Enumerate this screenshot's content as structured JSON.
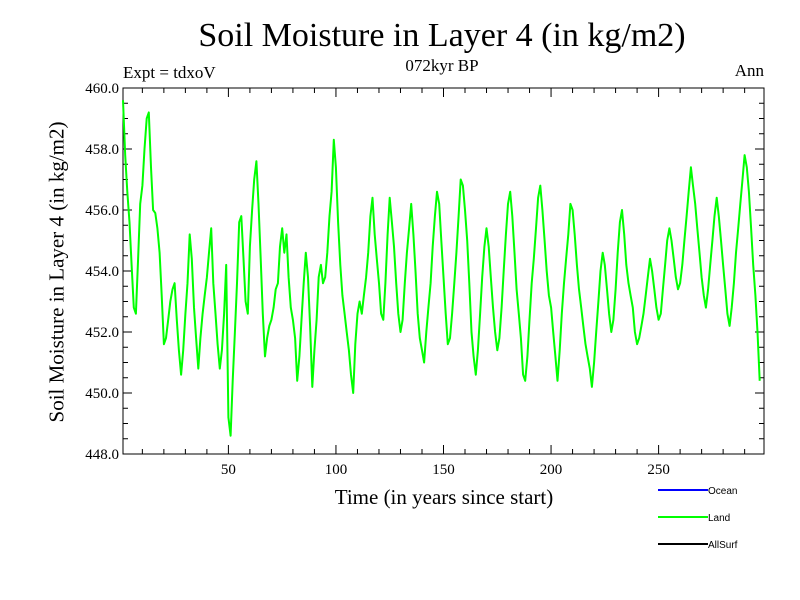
{
  "chart_data": {
    "type": "line",
    "title": "Soil Moisture in Layer 4 (in kg/m2)",
    "subtitle": "072kyr BP",
    "expt_label": "Expt = tdxoV",
    "season_label": "Ann",
    "xlabel": "Time (in years since start)",
    "ylabel": "Soil Moisture in Layer 4 (in kg/m2)",
    "xlim": [
      1,
      299
    ],
    "ylim": [
      448.0,
      460.0
    ],
    "x_ticks": [
      50,
      100,
      150,
      200,
      250
    ],
    "y_ticks": [
      "448.0",
      "450.0",
      "452.0",
      "454.0",
      "456.0",
      "458.0",
      "460.0"
    ],
    "grid": false,
    "legend_position": "bottom-right, below plot",
    "legend": [
      {
        "name": "Ocean",
        "color": "#0000ff"
      },
      {
        "name": "Land",
        "color": "#00ff00"
      },
      {
        "name": "AllSurf",
        "color": "#000000"
      }
    ],
    "series": [
      {
        "name": "Land",
        "color": "#00ff00",
        "x_start": 1,
        "x_step": 1,
        "values": [
          459.6,
          457.8,
          456.6,
          455.6,
          454.2,
          452.8,
          452.6,
          454.4,
          456.2,
          456.8,
          458.0,
          459.0,
          459.2,
          457.4,
          456.0,
          455.9,
          455.4,
          454.6,
          453.2,
          451.6,
          451.8,
          452.4,
          453.0,
          453.4,
          453.6,
          452.4,
          451.4,
          450.6,
          451.4,
          452.6,
          453.6,
          455.2,
          454.4,
          452.8,
          451.8,
          450.8,
          451.8,
          452.6,
          453.2,
          453.8,
          454.6,
          455.4,
          453.6,
          452.6,
          451.6,
          450.8,
          451.4,
          452.6,
          454.2,
          449.2,
          448.6,
          450.4,
          452.0,
          453.6,
          455.6,
          455.8,
          454.4,
          453.0,
          452.6,
          454.8,
          456.0,
          457.0,
          457.6,
          456.2,
          454.4,
          452.6,
          451.2,
          451.8,
          452.2,
          452.4,
          452.8,
          453.4,
          453.6,
          454.8,
          455.4,
          454.6,
          455.2,
          453.8,
          452.8,
          452.4,
          451.8,
          450.4,
          451.2,
          452.4,
          453.6,
          454.6,
          453.8,
          452.2,
          450.2,
          451.4,
          452.4,
          453.8,
          454.2,
          453.6,
          453.8,
          454.6,
          455.8,
          456.6,
          458.3,
          457.4,
          455.6,
          454.2,
          453.2,
          452.6,
          452.0,
          451.4,
          450.6,
          450.0,
          451.6,
          452.6,
          453.0,
          452.6,
          453.2,
          453.8,
          454.6,
          455.8,
          456.4,
          455.2,
          454.4,
          453.6,
          452.6,
          452.4,
          453.6,
          455.2,
          456.4,
          455.6,
          454.8,
          453.6,
          452.6,
          452.0,
          452.4,
          453.6,
          454.6,
          455.4,
          456.2,
          455.2,
          454.0,
          452.6,
          451.8,
          451.4,
          451.0,
          452.0,
          452.8,
          453.6,
          454.8,
          455.8,
          456.6,
          456.2,
          455.0,
          453.8,
          452.6,
          451.6,
          451.8,
          452.6,
          453.6,
          454.6,
          455.8,
          457.0,
          456.8,
          456.0,
          455.0,
          453.6,
          452.0,
          451.2,
          450.6,
          451.4,
          452.6,
          453.8,
          454.8,
          455.4,
          454.8,
          453.8,
          452.8,
          452.0,
          451.4,
          451.8,
          452.8,
          454.0,
          455.2,
          456.2,
          456.6,
          455.8,
          454.6,
          453.4,
          452.6,
          451.8,
          450.6,
          450.4,
          451.2,
          452.4,
          453.6,
          454.4,
          455.4,
          456.4,
          456.8,
          456.0,
          455.0,
          454.0,
          453.2,
          452.8,
          452.0,
          451.2,
          450.4,
          451.4,
          452.6,
          453.6,
          454.4,
          455.2,
          456.2,
          456.0,
          455.2,
          454.2,
          453.4,
          452.8,
          452.2,
          451.6,
          451.2,
          450.8,
          450.2,
          451.0,
          452.0,
          453.0,
          454.0,
          454.6,
          454.2,
          453.4,
          452.6,
          452.0,
          452.4,
          453.4,
          454.6,
          455.6,
          456.0,
          455.2,
          454.2,
          453.6,
          453.2,
          452.8,
          452.0,
          451.6,
          451.8,
          452.2,
          452.6,
          453.2,
          453.8,
          454.4,
          454.0,
          453.4,
          452.8,
          452.4,
          452.6,
          453.4,
          454.2,
          455.0,
          455.4,
          455.0,
          454.4,
          453.8,
          453.4,
          453.6,
          454.2,
          455.0,
          455.8,
          456.6,
          457.4,
          456.8,
          456.2,
          455.4,
          454.6,
          453.8,
          453.2,
          452.8,
          453.4,
          454.2,
          455.0,
          455.8,
          456.4,
          455.8,
          455.0,
          454.2,
          453.4,
          452.6,
          452.2,
          452.8,
          453.6,
          454.6,
          455.4,
          456.2,
          457.0,
          457.8,
          457.4,
          456.6,
          455.4,
          454.2,
          453.2,
          452.0,
          450.4
        ]
      }
    ]
  }
}
